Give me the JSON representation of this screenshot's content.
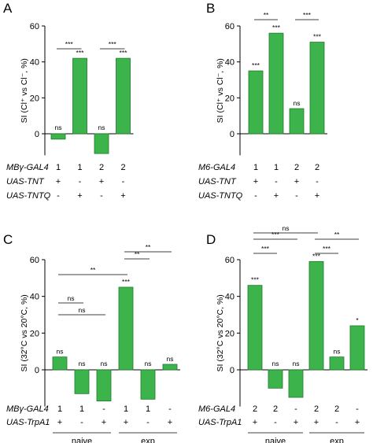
{
  "panels": [
    {
      "letter": "A",
      "ylabel": "SI (Cl⁺ vs Cl⁻, %)",
      "ylim": [
        -12,
        60
      ],
      "yticks": [
        0,
        20,
        40,
        60
      ],
      "bars": [
        {
          "value": -3,
          "label": "ns"
        },
        {
          "value": 42,
          "label": "***"
        },
        {
          "value": -11,
          "label": "ns"
        },
        {
          "value": 42,
          "label": "***"
        }
      ],
      "brackets": [
        {
          "from": 0,
          "to": 1,
          "label": "***"
        },
        {
          "from": 2,
          "to": 3,
          "label": "***"
        }
      ],
      "table": [
        {
          "label": "MBγ-GAL4",
          "cells": [
            "1",
            "1",
            "2",
            "2"
          ]
        },
        {
          "label": "UAS-TNT",
          "cells": [
            "+",
            "-",
            "+",
            "-"
          ]
        },
        {
          "label": "UAS-TNTQ",
          "cells": [
            "-",
            "+",
            "-",
            "+"
          ]
        }
      ],
      "groups": []
    },
    {
      "letter": "B",
      "ylabel": "SI (Cl⁺ vs Cl⁻, %)",
      "ylim": [
        -12,
        60
      ],
      "yticks": [
        0,
        20,
        40,
        60
      ],
      "bars": [
        {
          "value": 35,
          "label": "***"
        },
        {
          "value": 56,
          "label": "***"
        },
        {
          "value": 14,
          "label": "ns"
        },
        {
          "value": 51,
          "label": "***"
        }
      ],
      "brackets": [
        {
          "from": 0,
          "to": 1,
          "label": "**"
        },
        {
          "from": 2,
          "to": 3,
          "label": "***"
        }
      ],
      "table": [
        {
          "label": "M6-GAL4",
          "cells": [
            "1",
            "1",
            "2",
            "2"
          ]
        },
        {
          "label": "UAS-TNT",
          "cells": [
            "+",
            "-",
            "+",
            "-"
          ]
        },
        {
          "label": "UAS-TNTQ",
          "cells": [
            "-",
            "+",
            "-",
            "+"
          ]
        }
      ],
      "groups": []
    },
    {
      "letter": "C",
      "ylabel": "SI (32°C vs 20°C, %)",
      "ylim": [
        -20,
        60
      ],
      "yticks": [
        0,
        20,
        40,
        60
      ],
      "bars": [
        {
          "value": 7,
          "label": "ns"
        },
        {
          "value": -13,
          "label": "ns"
        },
        {
          "value": -17,
          "label": "ns"
        },
        {
          "value": 45,
          "label": "***"
        },
        {
          "value": -16,
          "label": "ns"
        },
        {
          "value": 3,
          "label": "ns"
        }
      ],
      "brackets": [
        {
          "from": 0,
          "to": 2,
          "label": "ns",
          "level": 0
        },
        {
          "from": 0,
          "to": 1,
          "label": "ns",
          "level": 1
        },
        {
          "from": 0,
          "to": 3,
          "label": "**",
          "level": 2
        },
        {
          "from": 3,
          "to": 4,
          "label": "**",
          "level": 3
        },
        {
          "from": 3,
          "to": 5,
          "label": "**",
          "level": 4
        }
      ],
      "table": [
        {
          "label": "MBγ-GAL4",
          "cells": [
            "1",
            "1",
            "-",
            "1",
            "1",
            "-"
          ]
        },
        {
          "label": "UAS-TrpA1",
          "cells": [
            "+",
            "-",
            "+",
            "+",
            "-",
            "+"
          ]
        }
      ],
      "groups": [
        {
          "label": "naive",
          "from": 0,
          "to": 2
        },
        {
          "label": "exp",
          "from": 3,
          "to": 5
        }
      ]
    },
    {
      "letter": "D",
      "ylabel": "SI (32°C vs 20°C, %)",
      "ylim": [
        -20,
        60
      ],
      "yticks": [
        0,
        20,
        40,
        60
      ],
      "bars": [
        {
          "value": 46,
          "label": "***"
        },
        {
          "value": -10,
          "label": "ns"
        },
        {
          "value": -15,
          "label": "ns"
        },
        {
          "value": 59,
          "label": "***"
        },
        {
          "value": 7,
          "label": "ns"
        },
        {
          "value": 24,
          "label": "*"
        }
      ],
      "brackets": [
        {
          "from": 0,
          "to": 1,
          "label": "***",
          "level": 0
        },
        {
          "from": 0,
          "to": 2,
          "label": "***",
          "level": 1
        },
        {
          "from": 0,
          "to": 3,
          "label": "ns",
          "level": 2
        },
        {
          "from": 3,
          "to": 4,
          "label": "***",
          "level": 0
        },
        {
          "from": 3,
          "to": 5,
          "label": "**",
          "level": 1
        }
      ],
      "table": [
        {
          "label": "M6-GAL4",
          "cells": [
            "2",
            "2",
            "-",
            "2",
            "2",
            "-"
          ]
        },
        {
          "label": "UAS-TrpA1",
          "cells": [
            "+",
            "-",
            "+",
            "+",
            "-",
            "+"
          ]
        }
      ],
      "groups": [
        {
          "label": "naive",
          "from": 0,
          "to": 2
        },
        {
          "label": "exp",
          "from": 3,
          "to": 5
        }
      ]
    }
  ],
  "chart_data": [
    {
      "type": "bar",
      "categories": [
        "1",
        "2",
        "3",
        "4"
      ],
      "values": [
        -3,
        42,
        -11,
        42
      ],
      "ylabel": "SI (Cl⁺ vs Cl⁻, %)",
      "ylim": [
        -12,
        60
      ]
    },
    {
      "type": "bar",
      "categories": [
        "1",
        "2",
        "3",
        "4"
      ],
      "values": [
        35,
        56,
        14,
        51
      ],
      "ylabel": "SI (Cl⁺ vs Cl⁻, %)",
      "ylim": [
        -12,
        60
      ]
    },
    {
      "type": "bar",
      "categories": [
        "1",
        "2",
        "3",
        "4",
        "5",
        "6"
      ],
      "values": [
        7,
        -13,
        -17,
        45,
        -16,
        3
      ],
      "ylabel": "SI (32°C vs 20°C, %)",
      "ylim": [
        -20,
        60
      ]
    },
    {
      "type": "bar",
      "categories": [
        "1",
        "2",
        "3",
        "4",
        "5",
        "6"
      ],
      "values": [
        46,
        -10,
        -15,
        59,
        7,
        24
      ],
      "ylabel": "SI (32°C vs 20°C, %)",
      "ylim": [
        -20,
        60
      ]
    }
  ],
  "colors": {
    "bar": "#3cb44b",
    "bar_edge": "#1d7a2a"
  }
}
